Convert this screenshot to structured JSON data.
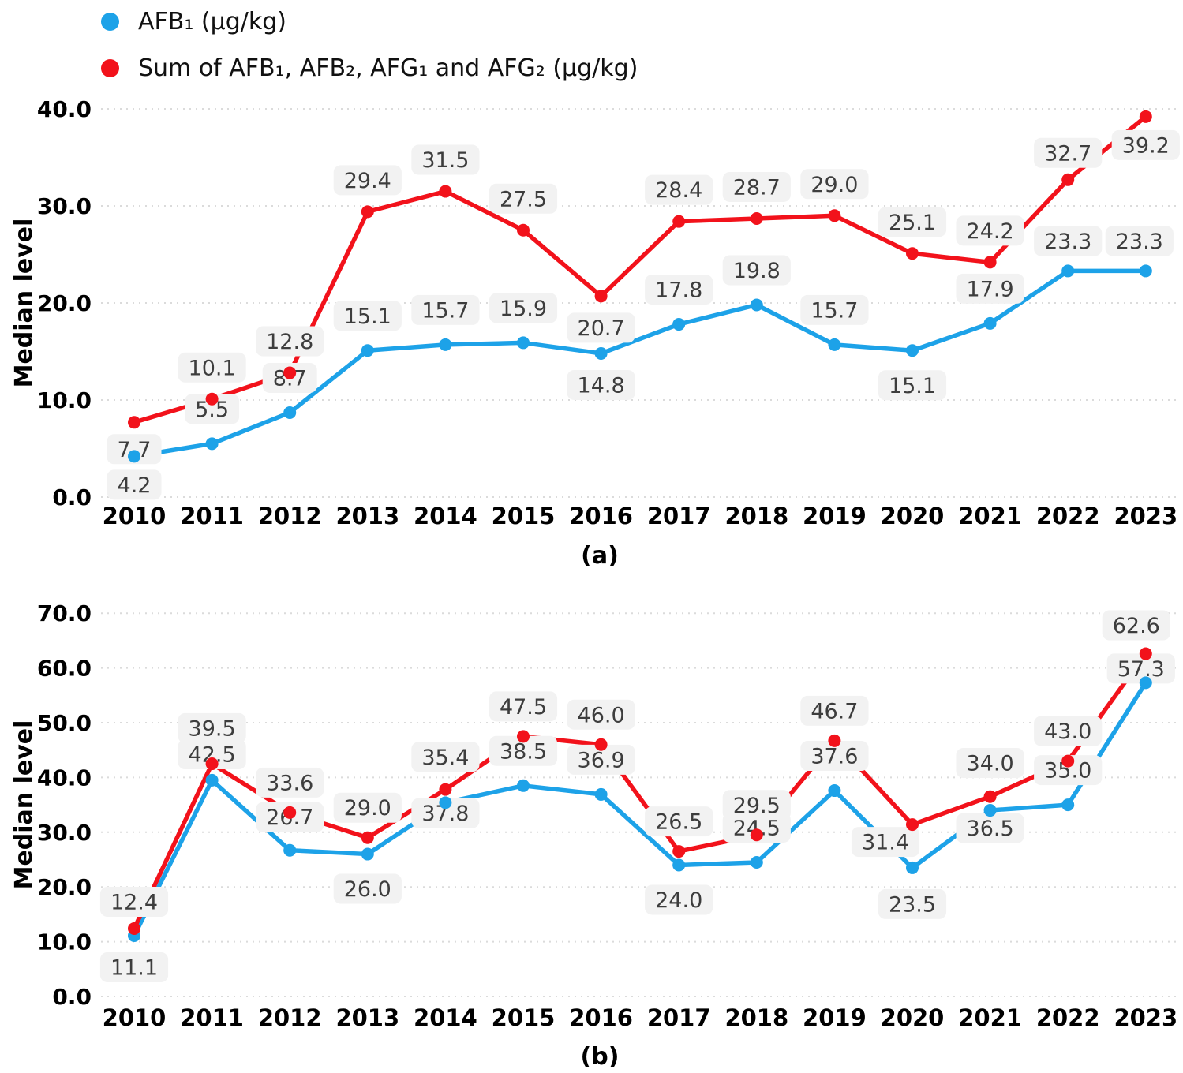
{
  "colors": {
    "afb1_blue": "#1DA2E8",
    "sum_red": "#F2121B",
    "label_bg": "#F2F2F2",
    "label_text": "#3D3D3D",
    "gridline": "#DBDBDB",
    "axis_text": "#000000"
  },
  "legend": {
    "items": [
      {
        "name": "afb1",
        "label": "AFB₁ (µg/kg)",
        "color": "#1DA2E8",
        "icon": "legend-dot-blue"
      },
      {
        "name": "sum-aflatoxins",
        "label": "Sum of AFB₁, AFB₂, AFG₁ and AFG₂ (µg/kg)",
        "color": "#F2121B",
        "icon": "legend-dot-red"
      }
    ]
  },
  "chart_data": [
    {
      "id": "a",
      "type": "line",
      "caption": "(a)",
      "title": "",
      "xlabel": "",
      "ylabel": "Median level",
      "ylim": [
        0,
        40
      ],
      "ytick_step": 10,
      "yticks": [
        "0.0",
        "10.0",
        "20.0",
        "30.0",
        "40.0"
      ],
      "grid": "horizontal-dotted",
      "legend_position": "top-left",
      "categories": [
        "2010",
        "2011",
        "2012",
        "2013",
        "2014",
        "2015",
        "2016",
        "2017",
        "2018",
        "2019",
        "2020",
        "2021",
        "2022",
        "2023"
      ],
      "series": [
        {
          "name": "AFB₁ (µg/kg)",
          "color": "#1DA2E8",
          "values": [
            4.2,
            5.5,
            8.7,
            15.1,
            15.7,
            15.9,
            14.8,
            17.8,
            19.8,
            15.7,
            15.1,
            17.9,
            23.3,
            23.3
          ]
        },
        {
          "name": "Sum of AFB₁, AFB₂, AFG₁ and AFG₂ (µg/kg)",
          "color": "#F2121B",
          "values": [
            7.7,
            10.1,
            12.8,
            29.4,
            31.5,
            27.5,
            20.7,
            28.4,
            28.7,
            29.0,
            25.1,
            24.2,
            32.7,
            39.2
          ]
        }
      ]
    },
    {
      "id": "b",
      "type": "line",
      "caption": "(b)",
      "title": "",
      "xlabel": "",
      "ylabel": "Median level",
      "ylim": [
        0,
        70
      ],
      "ytick_step": 10,
      "yticks": [
        "0.0",
        "10.0",
        "20.0",
        "30.0",
        "40.0",
        "50.0",
        "60.0",
        "70.0"
      ],
      "grid": "horizontal-dotted",
      "legend_position": "shared-top-left",
      "categories": [
        "2010",
        "2011",
        "2012",
        "2013",
        "2014",
        "2015",
        "2016",
        "2017",
        "2018",
        "2019",
        "2020",
        "2021",
        "2022",
        "2023"
      ],
      "series": [
        {
          "name": "AFB₁ (µg/kg)",
          "color": "#1DA2E8",
          "values": [
            11.1,
            39.5,
            26.7,
            26.0,
            35.4,
            38.5,
            36.9,
            24.0,
            24.5,
            37.6,
            23.5,
            34.0,
            35.0,
            57.3
          ]
        },
        {
          "name": "Sum of AFB₁, AFB₂, AFG₁ and AFG₂ (µg/kg)",
          "color": "#F2121B",
          "values": [
            12.4,
            42.5,
            33.6,
            29.0,
            37.8,
            47.5,
            46.0,
            26.5,
            29.5,
            46.7,
            31.4,
            36.5,
            43.0,
            62.6
          ]
        }
      ]
    }
  ]
}
